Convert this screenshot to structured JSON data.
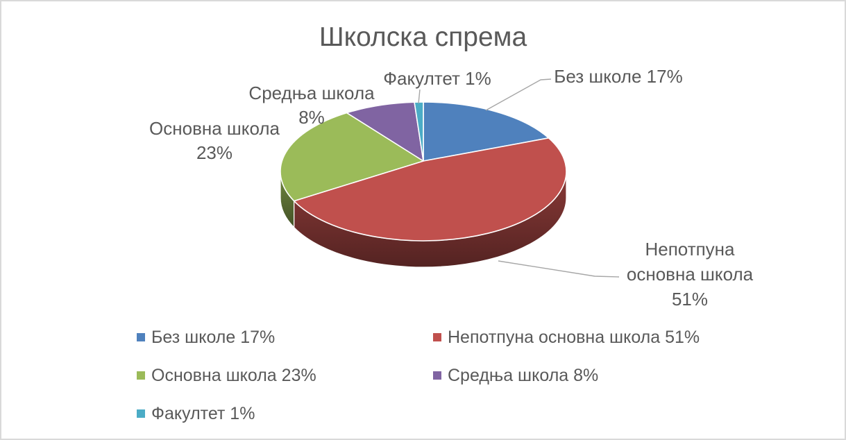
{
  "window": {
    "background": "#FFFFFF",
    "border_color": "#D9D9D9"
  },
  "chart_data": {
    "type": "pie",
    "title": "Школска спрема",
    "categories": [
      "Без школе",
      "Непотпуна основна школа",
      "Основна школа",
      "Средња школа",
      "Факултет"
    ],
    "values": [
      17,
      51,
      23,
      8,
      1
    ],
    "unit": "%",
    "colors": [
      "#4F81BD",
      "#C0504D",
      "#9BBB59",
      "#8064A2",
      "#4BACC6"
    ],
    "is_3d": true,
    "direction": "clockwise",
    "start_angle_deg": 0,
    "legend_position": "bottom",
    "data_labels": [
      {
        "lines": [
          "Без школе 17%"
        ]
      },
      {
        "lines": [
          "Непотпуна",
          "основна школа",
          "51%"
        ]
      },
      {
        "lines": [
          "Основна школа",
          "23%"
        ]
      },
      {
        "lines": [
          "Средња школа",
          "8%"
        ]
      },
      {
        "lines": [
          "Факултет 1%"
        ]
      }
    ]
  },
  "legend": {
    "items": [
      {
        "label": "Без школе 17%",
        "color": "#4F81BD"
      },
      {
        "label": "Непотпуна основна школа 51%",
        "color": "#C0504D"
      },
      {
        "label": "Основна школа 23%",
        "color": "#9BBB59"
      },
      {
        "label": "Средња школа 8%",
        "color": "#8064A2"
      },
      {
        "label": "Факултет 1%",
        "color": "#4BACC6"
      }
    ]
  },
  "styles": {
    "title_color": "#595959",
    "label_color": "#595959",
    "leader_line_color": "#A6A6A6",
    "slice_outline": "#FFFFFF"
  }
}
